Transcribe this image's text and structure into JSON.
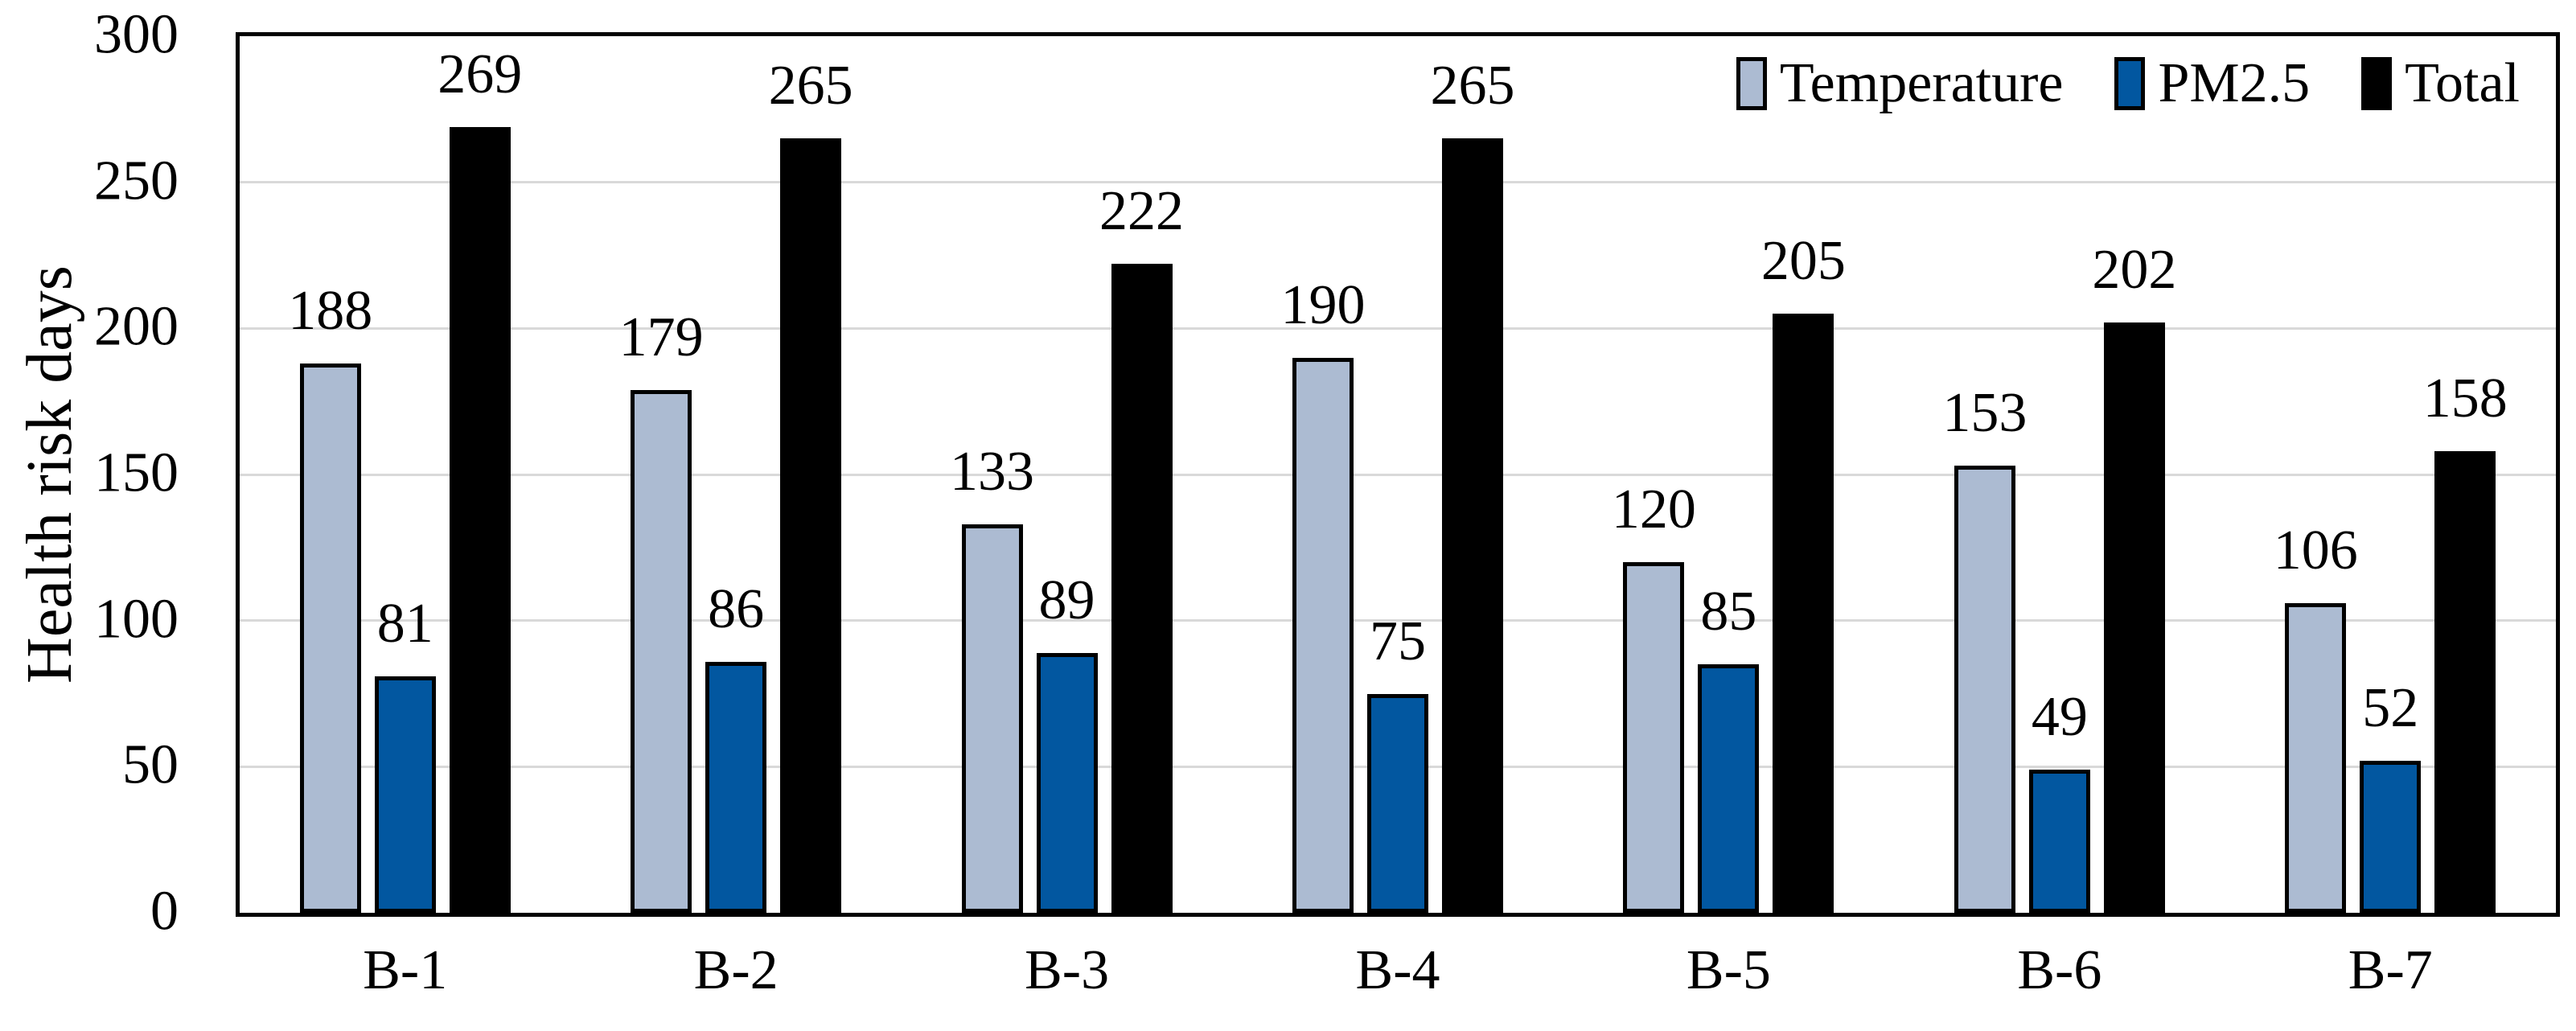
{
  "figure": {
    "background": "#ffffff",
    "text_color": "#000000"
  },
  "chart_data": {
    "type": "bar",
    "title": "",
    "xlabel": "",
    "ylabel": "Health risk days",
    "categories": [
      "B-1",
      "B-2",
      "B-3",
      "B-4",
      "B-5",
      "B-6",
      "B-7"
    ],
    "series": [
      {
        "name": "Temperature",
        "color": "#ACBBD2",
        "values": [
          188,
          179,
          133,
          190,
          120,
          153,
          106
        ]
      },
      {
        "name": "PM2.5",
        "color": "#0257A0",
        "values": [
          81,
          86,
          89,
          75,
          85,
          49,
          52
        ]
      },
      {
        "name": "Total",
        "color": "#000000",
        "values": [
          269,
          265,
          222,
          265,
          205,
          202,
          158
        ]
      }
    ],
    "ylim": [
      0,
      300
    ],
    "yticks": [
      0,
      50,
      100,
      150,
      200,
      250,
      300
    ],
    "grid": true,
    "gridline_color": "#D9D9D9",
    "axis_color": "#000000",
    "bar_outline_color": "#000000",
    "legend_position": "top-right",
    "data_labels": true
  }
}
